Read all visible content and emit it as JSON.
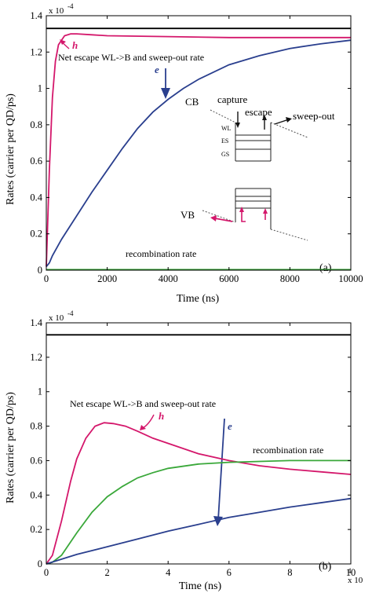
{
  "chart_data": [
    {
      "type": "line",
      "xlabel": "Time (ns)",
      "ylabel": "Rates (carrier per QD/ps)",
      "y_multiplier_label": "x 10",
      "y_multiplier_exp": "-4",
      "x_multiplier_label": "",
      "x_multiplier_exp": "",
      "panel_label": "(a)",
      "xlim": [
        0,
        10000
      ],
      "ylim": [
        0,
        1.4
      ],
      "xticks": [
        0,
        2000,
        4000,
        6000,
        8000,
        10000
      ],
      "xtick_labels": [
        "0",
        "2000",
        "4000",
        "6000",
        "8000",
        "10000"
      ],
      "yticks": [
        0,
        0.2,
        0.4,
        0.6,
        0.8,
        1,
        1.2,
        1.4
      ],
      "ytick_labels": [
        "0",
        "0.2",
        "0.4",
        "0.6",
        "0.8",
        "1",
        "1.2",
        "1.4"
      ],
      "series": [
        {
          "id": "black",
          "color": "#000000",
          "x": [
            0,
            10000
          ],
          "y": [
            1.33,
            1.33
          ]
        },
        {
          "id": "h",
          "name": "h",
          "color": "#d4176b",
          "x": [
            0,
            100,
            200,
            300,
            400,
            600,
            800,
            1000,
            1500,
            2000,
            4000,
            6000,
            8000,
            10000
          ],
          "y": [
            0.02,
            0.55,
            0.95,
            1.15,
            1.24,
            1.29,
            1.3,
            1.3,
            1.295,
            1.29,
            1.285,
            1.28,
            1.28,
            1.28
          ]
        },
        {
          "id": "e",
          "name": "e",
          "color": "#2a3f8e",
          "x": [
            0,
            100,
            200,
            500,
            1000,
            1500,
            2000,
            2500,
            3000,
            3500,
            4000,
            4500,
            5000,
            6000,
            7000,
            8000,
            9000,
            10000
          ],
          "y": [
            0.02,
            0.04,
            0.08,
            0.17,
            0.3,
            0.43,
            0.55,
            0.67,
            0.78,
            0.87,
            0.94,
            1.0,
            1.05,
            1.13,
            1.18,
            1.22,
            1.245,
            1.265
          ]
        },
        {
          "id": "recombination",
          "color": "#3aa83a",
          "x": [
            0,
            10000
          ],
          "y": [
            0.003,
            0.003
          ]
        }
      ],
      "annotations": {
        "net_escape": "Net escape WL->B and sweep-out rate",
        "recombination": "recombination rate",
        "h_label": "h",
        "e_label": "e"
      },
      "inset": {
        "cb": "CB",
        "vb": "VB",
        "capture": "capture",
        "escape": "escape",
        "sweep_out": "sweep-out",
        "wl": "WL",
        "es": "ES",
        "gs": "GS"
      }
    },
    {
      "type": "line",
      "xlabel": "Time (ns)",
      "ylabel": "Rates (carrier per QD/ps)",
      "y_multiplier_label": "x 10",
      "y_multiplier_exp": "-4",
      "x_multiplier_label": "x 10",
      "x_multiplier_exp": "4",
      "panel_label": "(b)",
      "xlim": [
        0,
        10
      ],
      "ylim": [
        0,
        1.4
      ],
      "xticks": [
        0,
        2,
        4,
        6,
        8,
        10
      ],
      "xtick_labels": [
        "0",
        "2",
        "4",
        "6",
        "8",
        "10"
      ],
      "yticks": [
        0,
        0.2,
        0.4,
        0.6,
        0.8,
        1,
        1.2,
        1.4
      ],
      "ytick_labels": [
        "0",
        "0.2",
        "0.4",
        "0.6",
        "0.8",
        "1",
        "1.2",
        "1.4"
      ],
      "series": [
        {
          "id": "black",
          "color": "#000000",
          "x": [
            0,
            10
          ],
          "y": [
            1.33,
            1.33
          ]
        },
        {
          "id": "h",
          "name": "h",
          "color": "#d4176b",
          "x": [
            0,
            0.2,
            0.5,
            0.8,
            1.0,
            1.3,
            1.6,
            1.9,
            2.2,
            2.6,
            3.0,
            3.5,
            4.0,
            5.0,
            6.0,
            7.0,
            8.0,
            9.0,
            10.0
          ],
          "y": [
            0.0,
            0.05,
            0.25,
            0.48,
            0.61,
            0.73,
            0.8,
            0.82,
            0.815,
            0.8,
            0.77,
            0.73,
            0.7,
            0.64,
            0.6,
            0.57,
            0.55,
            0.535,
            0.52
          ]
        },
        {
          "id": "recombination",
          "color": "#3aa83a",
          "x": [
            0,
            0.2,
            0.5,
            1.0,
            1.5,
            2.0,
            2.5,
            3.0,
            3.5,
            4.0,
            5.0,
            6.0,
            7.0,
            8.0,
            9.0,
            10.0
          ],
          "y": [
            0.0,
            0.01,
            0.05,
            0.18,
            0.3,
            0.39,
            0.45,
            0.5,
            0.53,
            0.555,
            0.58,
            0.59,
            0.595,
            0.6,
            0.6,
            0.6
          ]
        },
        {
          "id": "e",
          "name": "e",
          "color": "#2a3f8e",
          "x": [
            0,
            1,
            2,
            3,
            4,
            5,
            6,
            7,
            8,
            9,
            10
          ],
          "y": [
            0.0,
            0.055,
            0.1,
            0.145,
            0.19,
            0.23,
            0.27,
            0.3,
            0.33,
            0.355,
            0.38
          ]
        }
      ],
      "annotations": {
        "net_escape": "Net escape WL->B and sweep-out rate",
        "recombination": "recombination rate",
        "h_label": "h",
        "e_label": "e"
      }
    }
  ]
}
